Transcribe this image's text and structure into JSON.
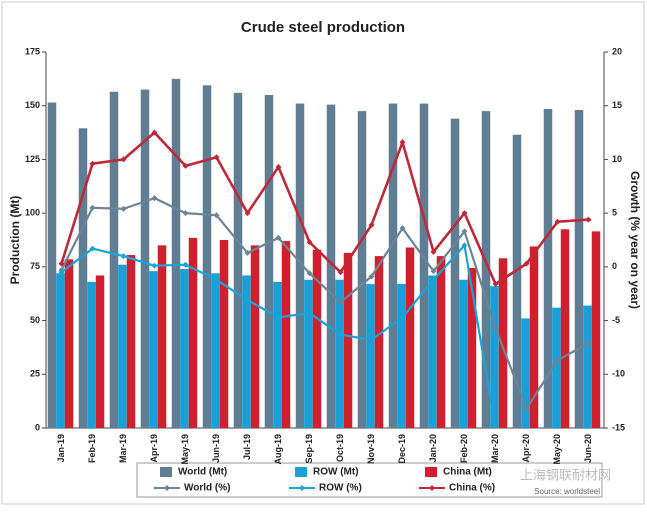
{
  "chart_data": {
    "type": "bar-line",
    "title": "Crude steel production",
    "y_label": "Production (Mt)",
    "y2_label": "Growth (% year on year)",
    "categories": [
      "Jan-19",
      "Feb-19",
      "Mar-19",
      "Apr-19",
      "May-19",
      "Jun-19",
      "Jul-19",
      "Aug-19",
      "Sep-19",
      "Oct-19",
      "Nov-19",
      "Dec-19",
      "Jan-20",
      "Feb-20",
      "Mar-20",
      "Apr-20",
      "May-20",
      "Jun-20"
    ],
    "ylim": [
      0,
      175
    ],
    "yticks": [
      0,
      25,
      50,
      75,
      100,
      125,
      150,
      175
    ],
    "y2lim": [
      -15,
      20
    ],
    "y2ticks": [
      -15,
      -10,
      -5,
      0,
      5,
      10,
      15,
      20
    ],
    "grid": false,
    "series": [
      {
        "name": "World (Mt)",
        "kind": "bar",
        "color": "#5f7e94",
        "values": [
          151.5,
          139.5,
          156.5,
          157.5,
          162.5,
          159.5,
          156,
          155,
          151,
          150.5,
          147.5,
          151,
          151,
          144,
          147.5,
          136.5,
          148.5,
          148
        ]
      },
      {
        "name": "ROW (Mt)",
        "kind": "bar",
        "color": "#19a0d8",
        "values": [
          72,
          68,
          76,
          73,
          74,
          72,
          71,
          68,
          69,
          69,
          67,
          67,
          71,
          69,
          66,
          51,
          56,
          57
        ]
      },
      {
        "name": "China (Mt)",
        "kind": "bar",
        "color": "#d0202e",
        "values": [
          78.5,
          71,
          80.5,
          85,
          88.5,
          87.5,
          85,
          87,
          83,
          81.5,
          80,
          84,
          80,
          74.5,
          79,
          84.5,
          92.5,
          91.5
        ]
      },
      {
        "name": "World (%)",
        "kind": "line",
        "axis": "y2",
        "color": "#6b8596",
        "values": [
          -0.3,
          5.5,
          5.4,
          6.4,
          5.0,
          4.8,
          1.3,
          2.7,
          -0.6,
          -3.3,
          -0.9,
          3.6,
          -0.4,
          3.3,
          -5.7,
          -13.2,
          -8.7,
          -7.1
        ]
      },
      {
        "name": "ROW (%)",
        "kind": "line",
        "axis": "y2",
        "color": "#1aa3d9",
        "values": [
          -0.5,
          1.7,
          1.0,
          0.1,
          0.2,
          -1.2,
          -3.1,
          -4.7,
          -4.3,
          -6.3,
          -6.8,
          -4.7,
          -1.2,
          2.0,
          -15,
          null,
          null,
          null
        ]
      },
      {
        "name": "China (%)",
        "kind": "line",
        "axis": "y2",
        "color": "#c0283a",
        "values": [
          0.3,
          9.6,
          10.0,
          12.5,
          9.4,
          10.2,
          5.0,
          9.3,
          2.3,
          -0.5,
          3.9,
          11.6,
          1.4,
          5.0,
          -1.6,
          0.3,
          4.2,
          4.4
        ]
      }
    ],
    "source": "Source: worldsteel",
    "watermark": "上海钢联耐材网"
  }
}
